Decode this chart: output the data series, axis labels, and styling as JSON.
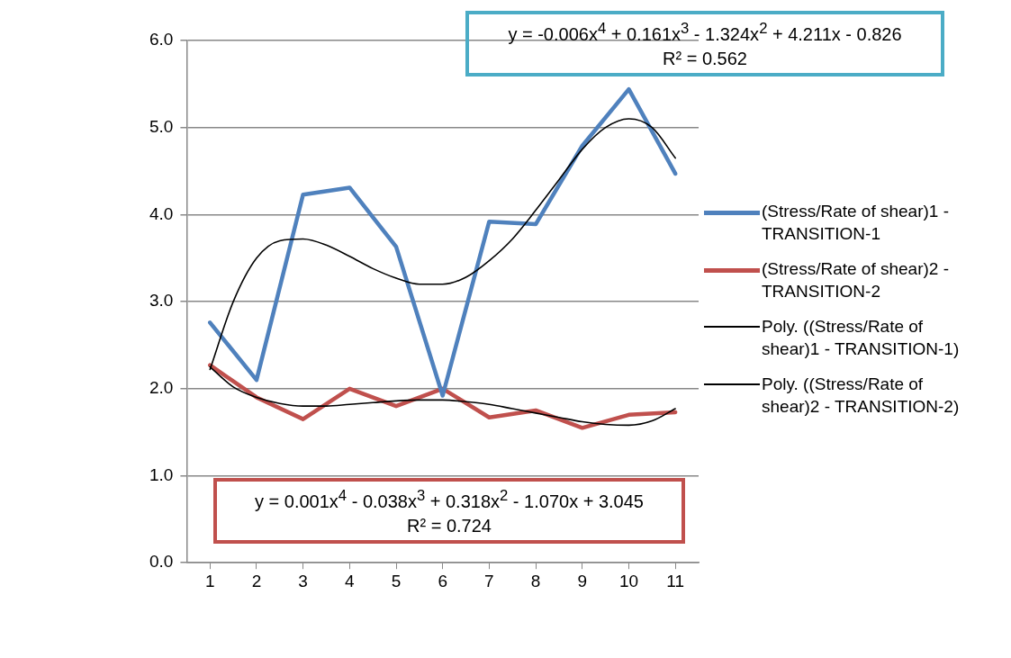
{
  "chart_data": {
    "type": "line",
    "x": [
      1,
      2,
      3,
      4,
      5,
      6,
      7,
      8,
      9,
      10,
      11
    ],
    "xlim": [
      0.5,
      11.5
    ],
    "xticks": [
      1,
      2,
      3,
      4,
      5,
      6,
      7,
      8,
      9,
      10,
      11
    ],
    "ylim": [
      0,
      6
    ],
    "yticks": [
      {
        "value": 0,
        "label": "0.0"
      },
      {
        "value": 1,
        "label": "1.0"
      },
      {
        "value": 2,
        "label": "2.0"
      },
      {
        "value": 3,
        "label": "3.0"
      },
      {
        "value": 4,
        "label": "4.0"
      },
      {
        "value": 5,
        "label": "5.0"
      },
      {
        "value": 6,
        "label": "6.0"
      }
    ],
    "grid": "y",
    "legend": "right",
    "marker": "none",
    "line_style": "solid",
    "series": [
      {
        "name": "(Stress/Rate of shear)1 - TRANSITION-1",
        "color": "#4f81bd",
        "values": [
          2.76,
          2.1,
          4.23,
          4.31,
          3.63,
          1.92,
          3.92,
          3.89,
          4.79,
          5.44,
          4.47
        ]
      },
      {
        "name": "(Stress/Rate of shear)2 - TRANSITION-2",
        "color": "#c0504d",
        "values": [
          2.27,
          1.9,
          1.65,
          2.0,
          1.8,
          2.0,
          1.67,
          1.75,
          1.55,
          1.7,
          1.73
        ]
      },
      {
        "name": "Poly. ((Stress/Rate of shear)1 - TRANSITION-1)",
        "color": "#000000",
        "type": "line",
        "x": [
          1,
          1.5,
          2,
          2.5,
          3,
          3.5,
          4,
          4.5,
          5,
          5.5,
          6,
          6.5,
          7,
          7.5,
          8,
          8.5,
          9,
          9.5,
          10,
          10.5,
          11
        ],
        "values": [
          2.22,
          3.0,
          3.5,
          3.7,
          3.72,
          3.65,
          3.52,
          3.38,
          3.27,
          3.2,
          3.2,
          3.28,
          3.47,
          3.72,
          4.05,
          4.4,
          4.75,
          5.0,
          5.1,
          5.0,
          4.65
        ]
      },
      {
        "name": "Poly. ((Stress/Rate of shear)2 - TRANSITION-2)",
        "color": "#000000",
        "type": "line",
        "x": [
          1,
          1.5,
          2,
          2.5,
          3,
          3.5,
          4,
          4.5,
          5,
          5.5,
          6,
          6.5,
          7,
          7.5,
          8,
          8.5,
          9,
          9.5,
          10,
          10.5,
          11
        ],
        "values": [
          2.25,
          2.02,
          1.9,
          1.83,
          1.8,
          1.8,
          1.82,
          1.84,
          1.86,
          1.87,
          1.87,
          1.85,
          1.82,
          1.77,
          1.72,
          1.67,
          1.62,
          1.59,
          1.58,
          1.63,
          1.77
        ]
      }
    ],
    "annotations": [
      "y = -0.006x$^{4}$ + 0.161x$^{3}$ - 1.324x$^{2}$ + 4.211x - 0.826",
      "R² = 0.562",
      "y = 0.001x$^{4}$ - 0.038x$^{3}$ + 0.318x$^{2}$ - 1.070x + 3.045",
      "R² = 0.724"
    ]
  }
}
